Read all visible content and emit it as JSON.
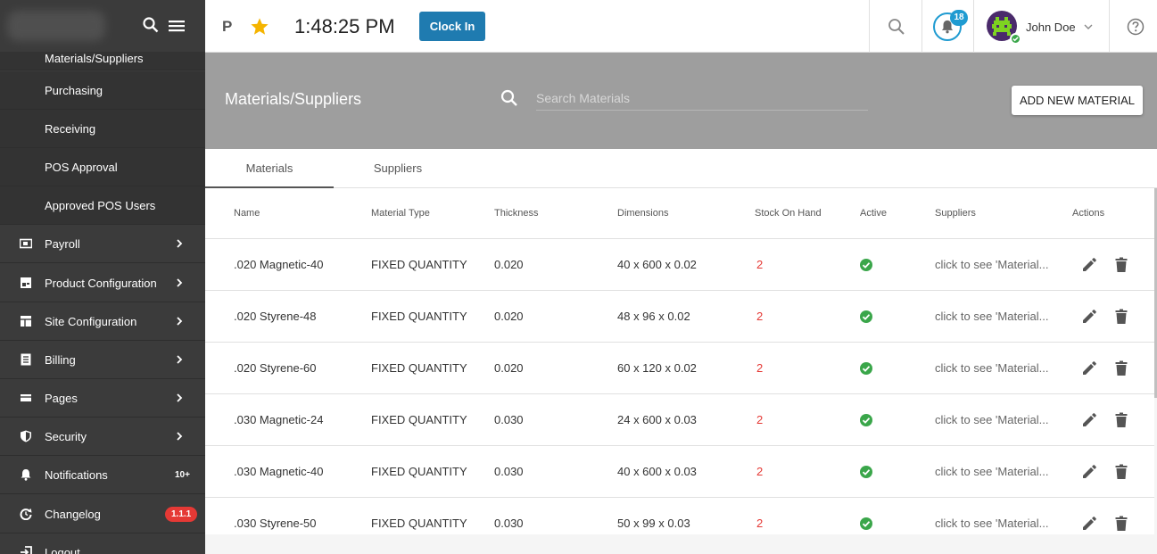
{
  "sidebar": {
    "cut_item": "Materials/Suppliers",
    "subitems": [
      {
        "label": "Purchasing"
      },
      {
        "label": "Receiving"
      },
      {
        "label": "POS Approval"
      },
      {
        "label": "Approved POS Users"
      }
    ],
    "items": [
      {
        "label": "Payroll",
        "icon": "payroll-icon"
      },
      {
        "label": "Product Configuration",
        "icon": "product-icon"
      },
      {
        "label": "Site Configuration",
        "icon": "site-icon"
      },
      {
        "label": "Billing",
        "icon": "billing-icon"
      },
      {
        "label": "Pages",
        "icon": "pages-icon"
      },
      {
        "label": "Security",
        "icon": "shield-icon"
      },
      {
        "label": "Notifications",
        "icon": "bell-icon",
        "badge": "10+"
      },
      {
        "label": "Changelog",
        "icon": "changelog-icon",
        "badge": "1.1.1"
      },
      {
        "label": "Logout",
        "icon": "logout-icon"
      }
    ]
  },
  "topbar": {
    "initial": "P",
    "time": "1:48:25 PM",
    "clock_in_label": "Clock In",
    "notification_count": "18",
    "user_name": "John Doe"
  },
  "header": {
    "title": "Materials/Suppliers",
    "search_placeholder": "Search Materials",
    "add_button_label": "ADD NEW MATERIAL"
  },
  "tabs": [
    {
      "label": "Materials",
      "active": true
    },
    {
      "label": "Suppliers",
      "active": false
    }
  ],
  "table": {
    "columns": [
      "Name",
      "Material Type",
      "Thickness",
      "Dimensions",
      "Stock On Hand",
      "Active",
      "Suppliers",
      "Actions"
    ],
    "rows": [
      {
        "name": ".020 Magnetic-40",
        "type": "FIXED QUANTITY",
        "thickness": "0.020",
        "dimensions": "40 x 600 x 0.02",
        "stock": "2",
        "suppliers": "click to see 'Material..."
      },
      {
        "name": ".020 Styrene-48",
        "type": "FIXED QUANTITY",
        "thickness": "0.020",
        "dimensions": "48 x 96 x 0.02",
        "stock": "2",
        "suppliers": "click to see 'Material..."
      },
      {
        "name": ".020 Styrene-60",
        "type": "FIXED QUANTITY",
        "thickness": "0.020",
        "dimensions": "60 x 120 x 0.02",
        "stock": "2",
        "suppliers": "click to see 'Material..."
      },
      {
        "name": ".030 Magnetic-24",
        "type": "FIXED QUANTITY",
        "thickness": "0.030",
        "dimensions": "24 x 600 x 0.03",
        "stock": "2",
        "suppliers": "click to see 'Material..."
      },
      {
        "name": ".030 Magnetic-40",
        "type": "FIXED QUANTITY",
        "thickness": "0.030",
        "dimensions": "40 x 600 x 0.03",
        "stock": "2",
        "suppliers": "click to see 'Material..."
      },
      {
        "name": ".030 Styrene-50",
        "type": "FIXED QUANTITY",
        "thickness": "0.030",
        "dimensions": "50 x 99 x 0.03",
        "stock": "2",
        "suppliers": "click to see 'Material..."
      }
    ]
  },
  "colors": {
    "sidebar_bg": "#3b3b3b",
    "accent_blue": "#1f7bb0",
    "header_band": "#9e9e9e",
    "stock_red": "#e53935",
    "active_green": "#3aa64a",
    "star_yellow": "#f5b400"
  }
}
